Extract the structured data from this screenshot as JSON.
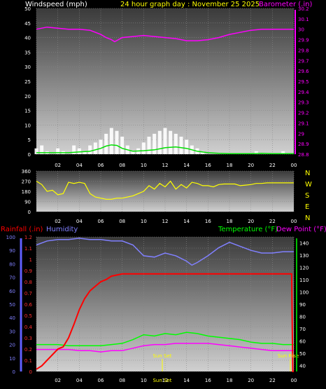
{
  "header": {
    "wind_label": "Windspeed (mph)",
    "title": "24 hour graph day : November 25 2025",
    "baro_label": "Barometer (.in)"
  },
  "bottom_header": {
    "rain_label": "Rainfall (.in)",
    "humidity_label": "Humidity",
    "temp_label": "Temperature (°F)",
    "dew_label": "Dew Point (°F)"
  },
  "annotations": {
    "sunset": "Sun Set",
    "sunrise": "Sun Rise"
  },
  "compass": [
    "N",
    "W",
    "S",
    "E",
    "N"
  ],
  "colors": {
    "wind": "#ffffff",
    "wind_avg": "#00e000",
    "baro": "#ff00ff",
    "direction": "#ffff00",
    "rain": "#ff0000",
    "humidity": "#8080ff",
    "temperature": "#00ff00",
    "dewpoint": "#ff00ff",
    "title": "#ffff00",
    "sun_marker": "#ffff00"
  },
  "chart_data": [
    {
      "type": "area",
      "x_ticks": [
        "02",
        "04",
        "06",
        "08",
        "10",
        "12",
        "14",
        "16",
        "18",
        "20",
        "22",
        "00"
      ],
      "xlim": [
        0,
        24
      ],
      "series": [
        {
          "name": "Windspeed (mph)",
          "axis": "left",
          "ylim": [
            0,
            50
          ],
          "yticks": [
            0,
            5,
            10,
            15,
            20,
            25,
            30,
            35,
            40,
            45,
            50
          ],
          "x": [
            0,
            0.5,
            1,
            1.5,
            2,
            2.5,
            3,
            3.5,
            4,
            4.5,
            5,
            5.5,
            6,
            6.5,
            7,
            7.5,
            8,
            8.5,
            9,
            9.5,
            10,
            10.5,
            11,
            11.5,
            12,
            12.5,
            13,
            13.5,
            14,
            14.5,
            15,
            15.5,
            16,
            16.5,
            17,
            17.5,
            18,
            18.5,
            19,
            19.5,
            20,
            20.5,
            21,
            21.5,
            22,
            22.5,
            23,
            23.5,
            24
          ],
          "values": [
            2,
            3,
            1,
            0,
            2,
            1,
            0,
            3,
            2,
            1,
            3,
            4,
            5,
            7,
            9,
            8,
            6,
            3,
            1,
            2,
            4,
            6,
            7,
            8,
            9,
            8,
            7,
            6,
            5,
            3,
            2,
            1,
            0,
            0,
            0,
            0,
            0,
            0,
            0,
            0,
            0,
            1,
            0,
            0,
            0,
            0,
            1,
            0,
            0
          ]
        },
        {
          "name": "Wind average",
          "axis": "left",
          "x": [
            0,
            1,
            2,
            3,
            4,
            5,
            6,
            6.5,
            7,
            7.5,
            8,
            9,
            10,
            11,
            12,
            13,
            14,
            15,
            16,
            17,
            18,
            19,
            20,
            21,
            22,
            23,
            24
          ],
          "values": [
            0.5,
            0.5,
            0.5,
            0.5,
            0.8,
            1,
            2,
            2.8,
            3.2,
            3,
            2,
            1,
            1.2,
            1.5,
            2.2,
            2.5,
            2,
            1,
            0.5,
            0.3,
            0.2,
            0.2,
            0.2,
            0.3,
            0.2,
            0.2,
            0.2
          ]
        },
        {
          "name": "Barometer (.in)",
          "axis": "right",
          "ylim": [
            28.8,
            30.2
          ],
          "yticks": [
            "28.8",
            "28.9",
            "29",
            "29.1",
            "29.2",
            "29.3",
            "29.4",
            "29.5",
            "29.6",
            "29.7",
            "29.8",
            "29.9",
            "30",
            "30.1",
            "30.2"
          ],
          "x": [
            0,
            1,
            2,
            3,
            4,
            5,
            6,
            6.5,
            7,
            7.3,
            8,
            9,
            10,
            11,
            12,
            13,
            14,
            15,
            16,
            17,
            18,
            19,
            20,
            21,
            22,
            23,
            24
          ],
          "values": [
            30.0,
            30.02,
            30.01,
            30.0,
            30.0,
            29.99,
            29.95,
            29.92,
            29.9,
            29.88,
            29.92,
            29.93,
            29.94,
            29.93,
            29.92,
            29.91,
            29.89,
            29.89,
            29.9,
            29.92,
            29.95,
            29.97,
            29.99,
            30.0,
            30.0,
            30.0,
            30.0
          ]
        }
      ]
    },
    {
      "type": "line",
      "x_ticks": [
        "02",
        "04",
        "06",
        "08",
        "10",
        "12",
        "14",
        "16",
        "18",
        "20",
        "22",
        "00"
      ],
      "xlim": [
        0,
        24
      ],
      "ylim": [
        0,
        360
      ],
      "yticks": [
        0,
        90,
        180,
        270,
        360
      ],
      "series": [
        {
          "name": "Wind direction",
          "x": [
            0,
            0.5,
            1,
            1.5,
            2,
            2.5,
            3,
            3.5,
            4,
            4.5,
            5,
            5.5,
            6,
            6.5,
            7,
            7.5,
            8,
            8.5,
            9,
            9.5,
            10,
            10.5,
            11,
            11.5,
            12,
            12.5,
            13,
            13.5,
            14,
            14.5,
            15,
            15.5,
            16,
            16.5,
            17,
            17.5,
            18,
            18.5,
            19,
            19.5,
            20,
            20.5,
            21,
            21.5,
            22,
            22.5,
            23,
            23.5,
            24
          ],
          "values": [
            270,
            240,
            180,
            190,
            150,
            160,
            260,
            250,
            260,
            250,
            160,
            130,
            120,
            110,
            110,
            120,
            120,
            130,
            140,
            160,
            180,
            230,
            200,
            250,
            220,
            270,
            200,
            240,
            210,
            260,
            250,
            230,
            230,
            220,
            240,
            245,
            245,
            245,
            230,
            235,
            240,
            250,
            250,
            255,
            255,
            255,
            255,
            255,
            255
          ]
        }
      ]
    },
    {
      "type": "line",
      "x_ticks": [
        "02",
        "04",
        "06",
        "08",
        "10",
        "12",
        "14",
        "16",
        "18",
        "20",
        "22",
        "00"
      ],
      "xlim": [
        0,
        24
      ],
      "series": [
        {
          "name": "Rainfall (.in)",
          "axis": "left-inner",
          "ylim": [
            0,
            1.2
          ],
          "yticks": [
            "0",
            "0.1",
            "0.2",
            "0.3",
            "0.4",
            "0.5",
            "0.6",
            "0.7",
            "0.8",
            "0.9",
            "1",
            "1.1",
            "1.2"
          ],
          "x": [
            0,
            0.5,
            1,
            1.5,
            2,
            2.5,
            3,
            3.5,
            4,
            4.5,
            5,
            5.5,
            6,
            6.5,
            7,
            7.5,
            8,
            9,
            10,
            11,
            12,
            13,
            14,
            15,
            16,
            17,
            18,
            19,
            20,
            21,
            22,
            23,
            23.5,
            23.8,
            23.9,
            24
          ],
          "values": [
            0.02,
            0.05,
            0.1,
            0.15,
            0.2,
            0.22,
            0.3,
            0.42,
            0.55,
            0.65,
            0.72,
            0.76,
            0.8,
            0.82,
            0.85,
            0.86,
            0.87,
            0.87,
            0.87,
            0.87,
            0.87,
            0.87,
            0.87,
            0.87,
            0.87,
            0.87,
            0.87,
            0.87,
            0.87,
            0.87,
            0.87,
            0.87,
            0.87,
            0.87,
            0.0,
            0.0
          ]
        },
        {
          "name": "Humidity",
          "axis": "left-outer",
          "ylim": [
            0,
            100
          ],
          "yticks": [
            0,
            10,
            20,
            30,
            40,
            50,
            60,
            70,
            80,
            90,
            100
          ],
          "x": [
            0,
            1,
            2,
            3,
            4,
            5,
            6,
            7,
            8,
            9,
            10,
            11,
            12,
            13,
            14,
            14.5,
            15,
            16,
            17,
            18,
            19,
            20,
            21,
            22,
            23,
            24
          ],
          "values": [
            94,
            97,
            98,
            98,
            99,
            98,
            98,
            97,
            97,
            94,
            86,
            85,
            88,
            86,
            82,
            79,
            81,
            86,
            92,
            96,
            93,
            90,
            88,
            88,
            89,
            89
          ]
        },
        {
          "name": "Temperature (°F)",
          "axis": "right",
          "ylim": [
            35,
            145
          ],
          "yticks": [
            40,
            50,
            60,
            70,
            80,
            90,
            100,
            110,
            120,
            130,
            140
          ],
          "x": [
            0,
            1,
            2,
            3,
            4,
            5,
            6,
            7,
            8,
            9,
            10,
            11,
            12,
            13,
            14,
            15,
            16,
            17,
            18,
            19,
            20,
            21,
            22,
            23,
            24
          ],
          "values": [
            57,
            57,
            57,
            56,
            56,
            56,
            56,
            57,
            58,
            61,
            65,
            64,
            66,
            65,
            67,
            66,
            64,
            63,
            62,
            61,
            59,
            58,
            58,
            57,
            57
          ]
        },
        {
          "name": "Dew Point (°F)",
          "axis": "right",
          "x": [
            0,
            1,
            2,
            3,
            4,
            5,
            6,
            7,
            8,
            9,
            10,
            11,
            12,
            13,
            14,
            15,
            16,
            17,
            18,
            19,
            20,
            21,
            22,
            23,
            24
          ],
          "values": [
            53,
            53,
            53,
            53,
            52,
            52,
            51,
            52,
            52,
            54,
            56,
            57,
            57,
            58,
            58,
            58,
            58,
            57,
            56,
            55,
            54,
            53,
            52,
            52,
            52
          ]
        }
      ],
      "markers": [
        {
          "label": "Sun Set",
          "x": 16.25
        },
        {
          "label": "Sun Rise",
          "x": 7.1
        }
      ]
    }
  ]
}
